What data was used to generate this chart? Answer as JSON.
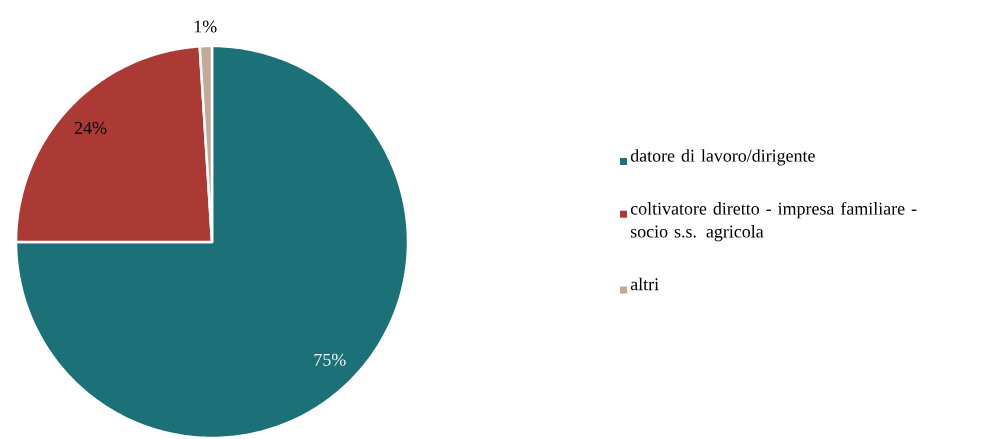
{
  "chart_data": {
    "type": "pie",
    "categories": [
      "datore di lavoro/dirigente",
      "coltivatore diretto - impresa familiare - socio s.s. agricola",
      "altri"
    ],
    "values": [
      75,
      24,
      1
    ],
    "colors": [
      "#1b7177",
      "#ac3a34",
      "#c4a898"
    ],
    "value_labels": [
      "75%",
      "24%",
      "1%"
    ],
    "legend": "right"
  }
}
